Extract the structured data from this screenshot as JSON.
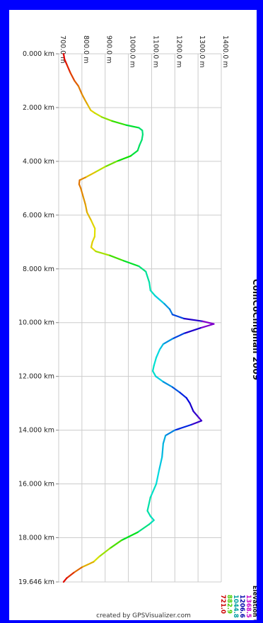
{
  "chart_data": {
    "type": "line",
    "title": "ComCoCingmall 2009",
    "orientation": "rotated",
    "x_ticks": [
      "0.000 km",
      "2.000 km",
      "4.000 km",
      "6.000 km",
      "8.000 km",
      "10.000 km",
      "12.000 km",
      "14.000 km",
      "16.000 km",
      "18.000 km",
      "19.646 km"
    ],
    "y_ticks": [
      "700.0 m",
      "800.0 m",
      "900.0 m",
      "1000.0 m",
      "1100.0 m",
      "1200.0 m",
      "1300.0 m",
      "1400.0 m"
    ],
    "xlim": [
      0,
      19.646
    ],
    "ylim": [
      700,
      1400
    ],
    "grid": true,
    "series": [
      {
        "points": [
          [
            0.0,
            721
          ],
          [
            0.2,
            725
          ],
          [
            0.4,
            735
          ],
          [
            0.7,
            750
          ],
          [
            1.0,
            768
          ],
          [
            1.2,
            785
          ],
          [
            1.5,
            800
          ],
          [
            1.7,
            812
          ],
          [
            1.9,
            825
          ],
          [
            2.1,
            838
          ],
          [
            2.2,
            855
          ],
          [
            2.35,
            885
          ],
          [
            2.5,
            930
          ],
          [
            2.65,
            990
          ],
          [
            2.75,
            1045
          ],
          [
            2.85,
            1060
          ],
          [
            3.0,
            1062
          ],
          [
            3.2,
            1058
          ],
          [
            3.4,
            1048
          ],
          [
            3.6,
            1040
          ],
          [
            3.8,
            1010
          ],
          [
            4.0,
            950
          ],
          [
            4.2,
            900
          ],
          [
            4.4,
            858
          ],
          [
            4.6,
            815
          ],
          [
            4.7,
            790
          ],
          [
            4.85,
            788
          ],
          [
            5.0,
            795
          ],
          [
            5.3,
            805
          ],
          [
            5.6,
            815
          ],
          [
            5.9,
            822
          ],
          [
            6.2,
            840
          ],
          [
            6.5,
            856
          ],
          [
            6.8,
            855
          ],
          [
            7.0,
            845
          ],
          [
            7.2,
            840
          ],
          [
            7.35,
            860
          ],
          [
            7.5,
            920
          ],
          [
            7.7,
            980
          ],
          [
            7.9,
            1045
          ],
          [
            8.1,
            1075
          ],
          [
            8.5,
            1090
          ],
          [
            8.8,
            1095
          ],
          [
            9.0,
            1115
          ],
          [
            9.3,
            1155
          ],
          [
            9.5,
            1178
          ],
          [
            9.7,
            1190
          ],
          [
            9.85,
            1240
          ],
          [
            9.95,
            1320
          ],
          [
            10.05,
            1368
          ],
          [
            10.2,
            1310
          ],
          [
            10.4,
            1240
          ],
          [
            10.6,
            1190
          ],
          [
            10.8,
            1150
          ],
          [
            11.0,
            1135
          ],
          [
            11.3,
            1120
          ],
          [
            11.6,
            1110
          ],
          [
            11.8,
            1105
          ],
          [
            12.0,
            1118
          ],
          [
            12.2,
            1150
          ],
          [
            12.4,
            1190
          ],
          [
            12.6,
            1222
          ],
          [
            12.8,
            1250
          ],
          [
            13.0,
            1265
          ],
          [
            13.3,
            1280
          ],
          [
            13.5,
            1300
          ],
          [
            13.65,
            1315
          ],
          [
            13.8,
            1270
          ],
          [
            14.0,
            1200
          ],
          [
            14.2,
            1160
          ],
          [
            14.5,
            1150
          ],
          [
            15.0,
            1145
          ],
          [
            15.5,
            1132
          ],
          [
            16.0,
            1120
          ],
          [
            16.5,
            1095
          ],
          [
            17.0,
            1082
          ],
          [
            17.2,
            1095
          ],
          [
            17.35,
            1110
          ],
          [
            17.5,
            1090
          ],
          [
            17.8,
            1040
          ],
          [
            18.1,
            970
          ],
          [
            18.4,
            920
          ],
          [
            18.7,
            875
          ],
          [
            18.9,
            850
          ],
          [
            19.1,
            800
          ],
          [
            19.3,
            765
          ],
          [
            19.5,
            735
          ],
          [
            19.646,
            721
          ]
        ]
      }
    ],
    "legend": {
      "title": "Elevation (m)",
      "items": [
        {
          "label": "1368.5",
          "color": "#cc00cc"
        },
        {
          "label": "1206.6",
          "color": "#0000aa"
        },
        {
          "label": "1044.8",
          "color": "#00a0a0"
        },
        {
          "label": "882.9",
          "color": "#44cc00"
        },
        {
          "label": "721.0",
          "color": "#cc0000"
        }
      ]
    },
    "credit": "created by GPSVisualizer.com"
  }
}
